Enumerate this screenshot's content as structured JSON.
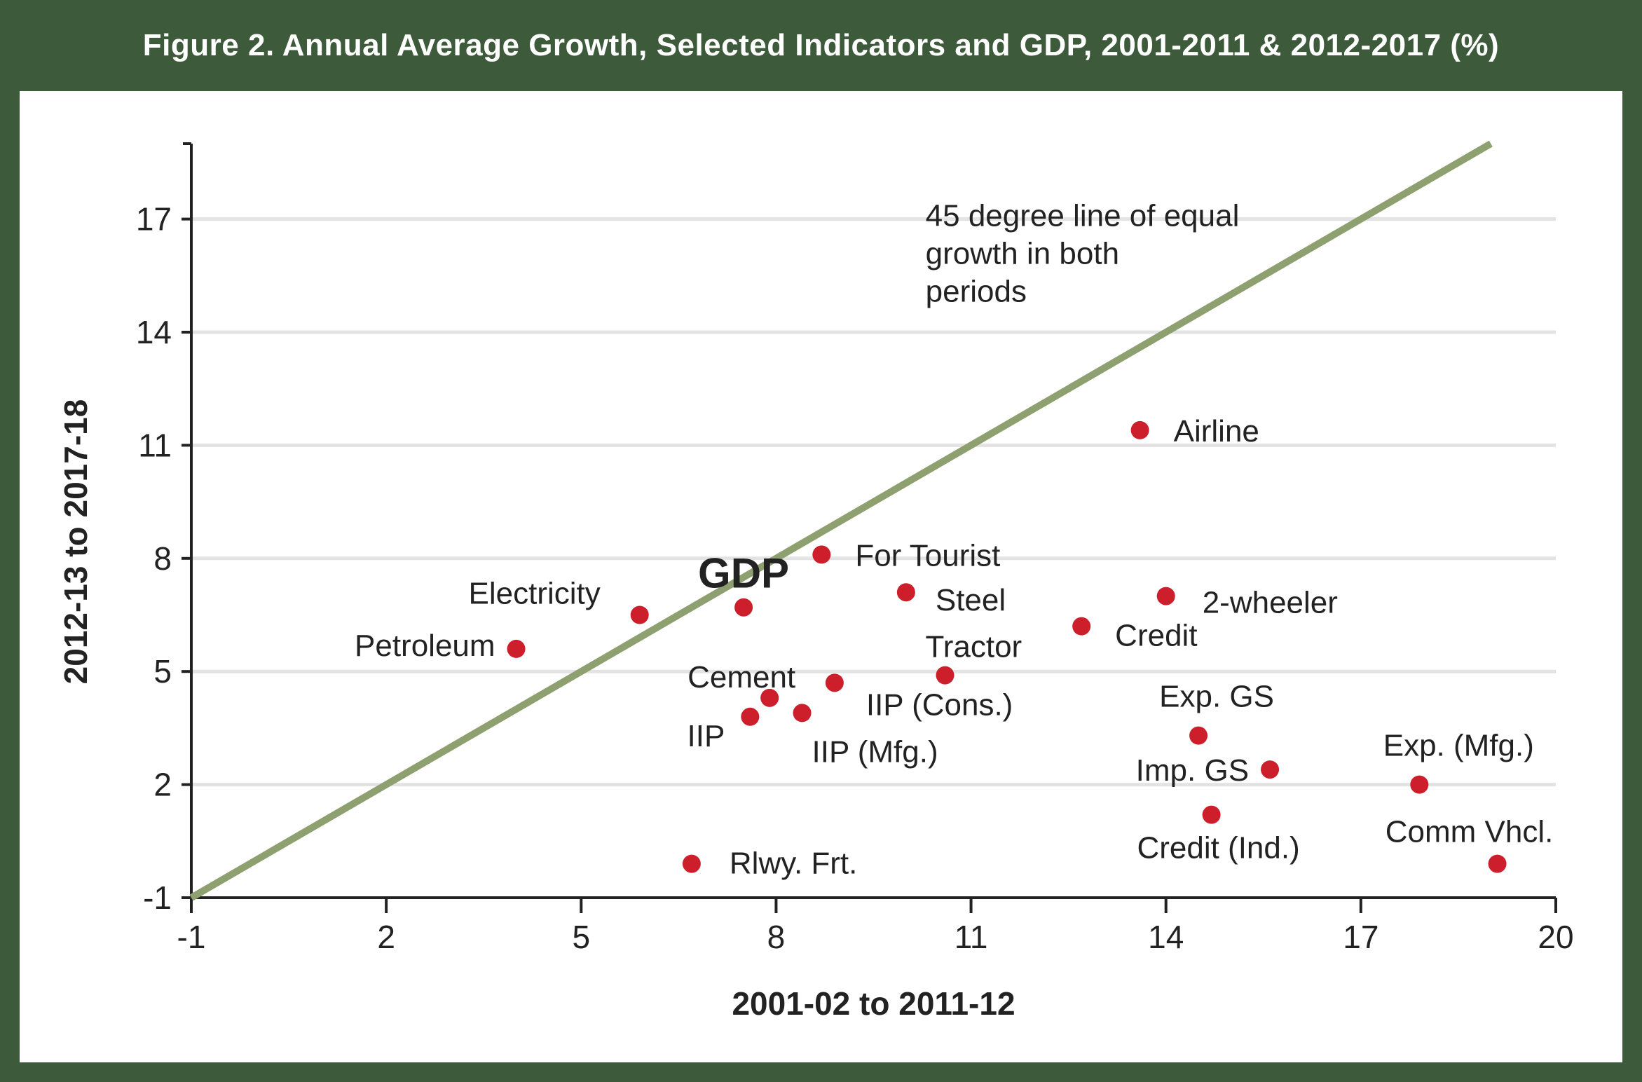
{
  "header": {
    "title": "Figure 2. Annual Average Growth, Selected Indicators and GDP, 2001-2011 & 2012-2017 (%)"
  },
  "colors": {
    "frame": "#3d5a3a",
    "point": "#cc1f2b",
    "diagonal": "#8fa070",
    "grid": "#e3e3e3"
  },
  "chart_data": {
    "type": "scatter",
    "title": "Figure 2. Annual Average Growth, Selected Indicators and GDP, 2001-2011 & 2012-2017 (%)",
    "xlabel": "2001-02 to 2011-12",
    "ylabel": "2012-13 to 2017-18",
    "xlim": [
      -1,
      20
    ],
    "ylim": [
      -1,
      19
    ],
    "xticks": [
      -1,
      2,
      5,
      8,
      11,
      14,
      17,
      20
    ],
    "yticks": [
      -1,
      2,
      5,
      8,
      11,
      14,
      17
    ],
    "grid": "horizontal",
    "reference_line": {
      "label": "45 degree line of equal growth in both periods",
      "lines": [
        "45 degree line of equal",
        "growth in both",
        "periods"
      ],
      "slope": 1
    },
    "points": [
      {
        "label": "Airline",
        "x": 13.6,
        "y": 11.4
      },
      {
        "label": "For Tourist",
        "x": 8.7,
        "y": 8.1
      },
      {
        "label": "Steel",
        "x": 10.0,
        "y": 7.1
      },
      {
        "label": "2-wheeler",
        "x": 14.0,
        "y": 7.0
      },
      {
        "label": "GDP",
        "x": 7.5,
        "y": 6.7
      },
      {
        "label": "Electricity",
        "x": 5.9,
        "y": 6.5
      },
      {
        "label": "Credit",
        "x": 12.7,
        "y": 6.2
      },
      {
        "label": "Petroleum",
        "x": 4.0,
        "y": 5.6
      },
      {
        "label": "Tractor",
        "x": 10.6,
        "y": 4.9
      },
      {
        "label": "Cement",
        "x": 7.9,
        "y": 4.3
      },
      {
        "label": "IIP (Cons.)",
        "x": 8.9,
        "y": 4.7
      },
      {
        "label": "IIP (Mfg.)",
        "x": 8.4,
        "y": 3.9
      },
      {
        "label": "IIP",
        "x": 7.6,
        "y": 3.8
      },
      {
        "label": "Exp. GS",
        "x": 14.5,
        "y": 3.3
      },
      {
        "label": "Imp. GS",
        "x": 15.6,
        "y": 2.4
      },
      {
        "label": "Exp. (Mfg.)",
        "x": 17.9,
        "y": 2.0
      },
      {
        "label": "Credit (Ind.)",
        "x": 14.7,
        "y": 1.2
      },
      {
        "label": "Rlwy. Frt.",
        "x": 6.7,
        "y": -0.1
      },
      {
        "label": "Comm Vhcl.",
        "x": 19.1,
        "y": -0.1
      }
    ]
  }
}
